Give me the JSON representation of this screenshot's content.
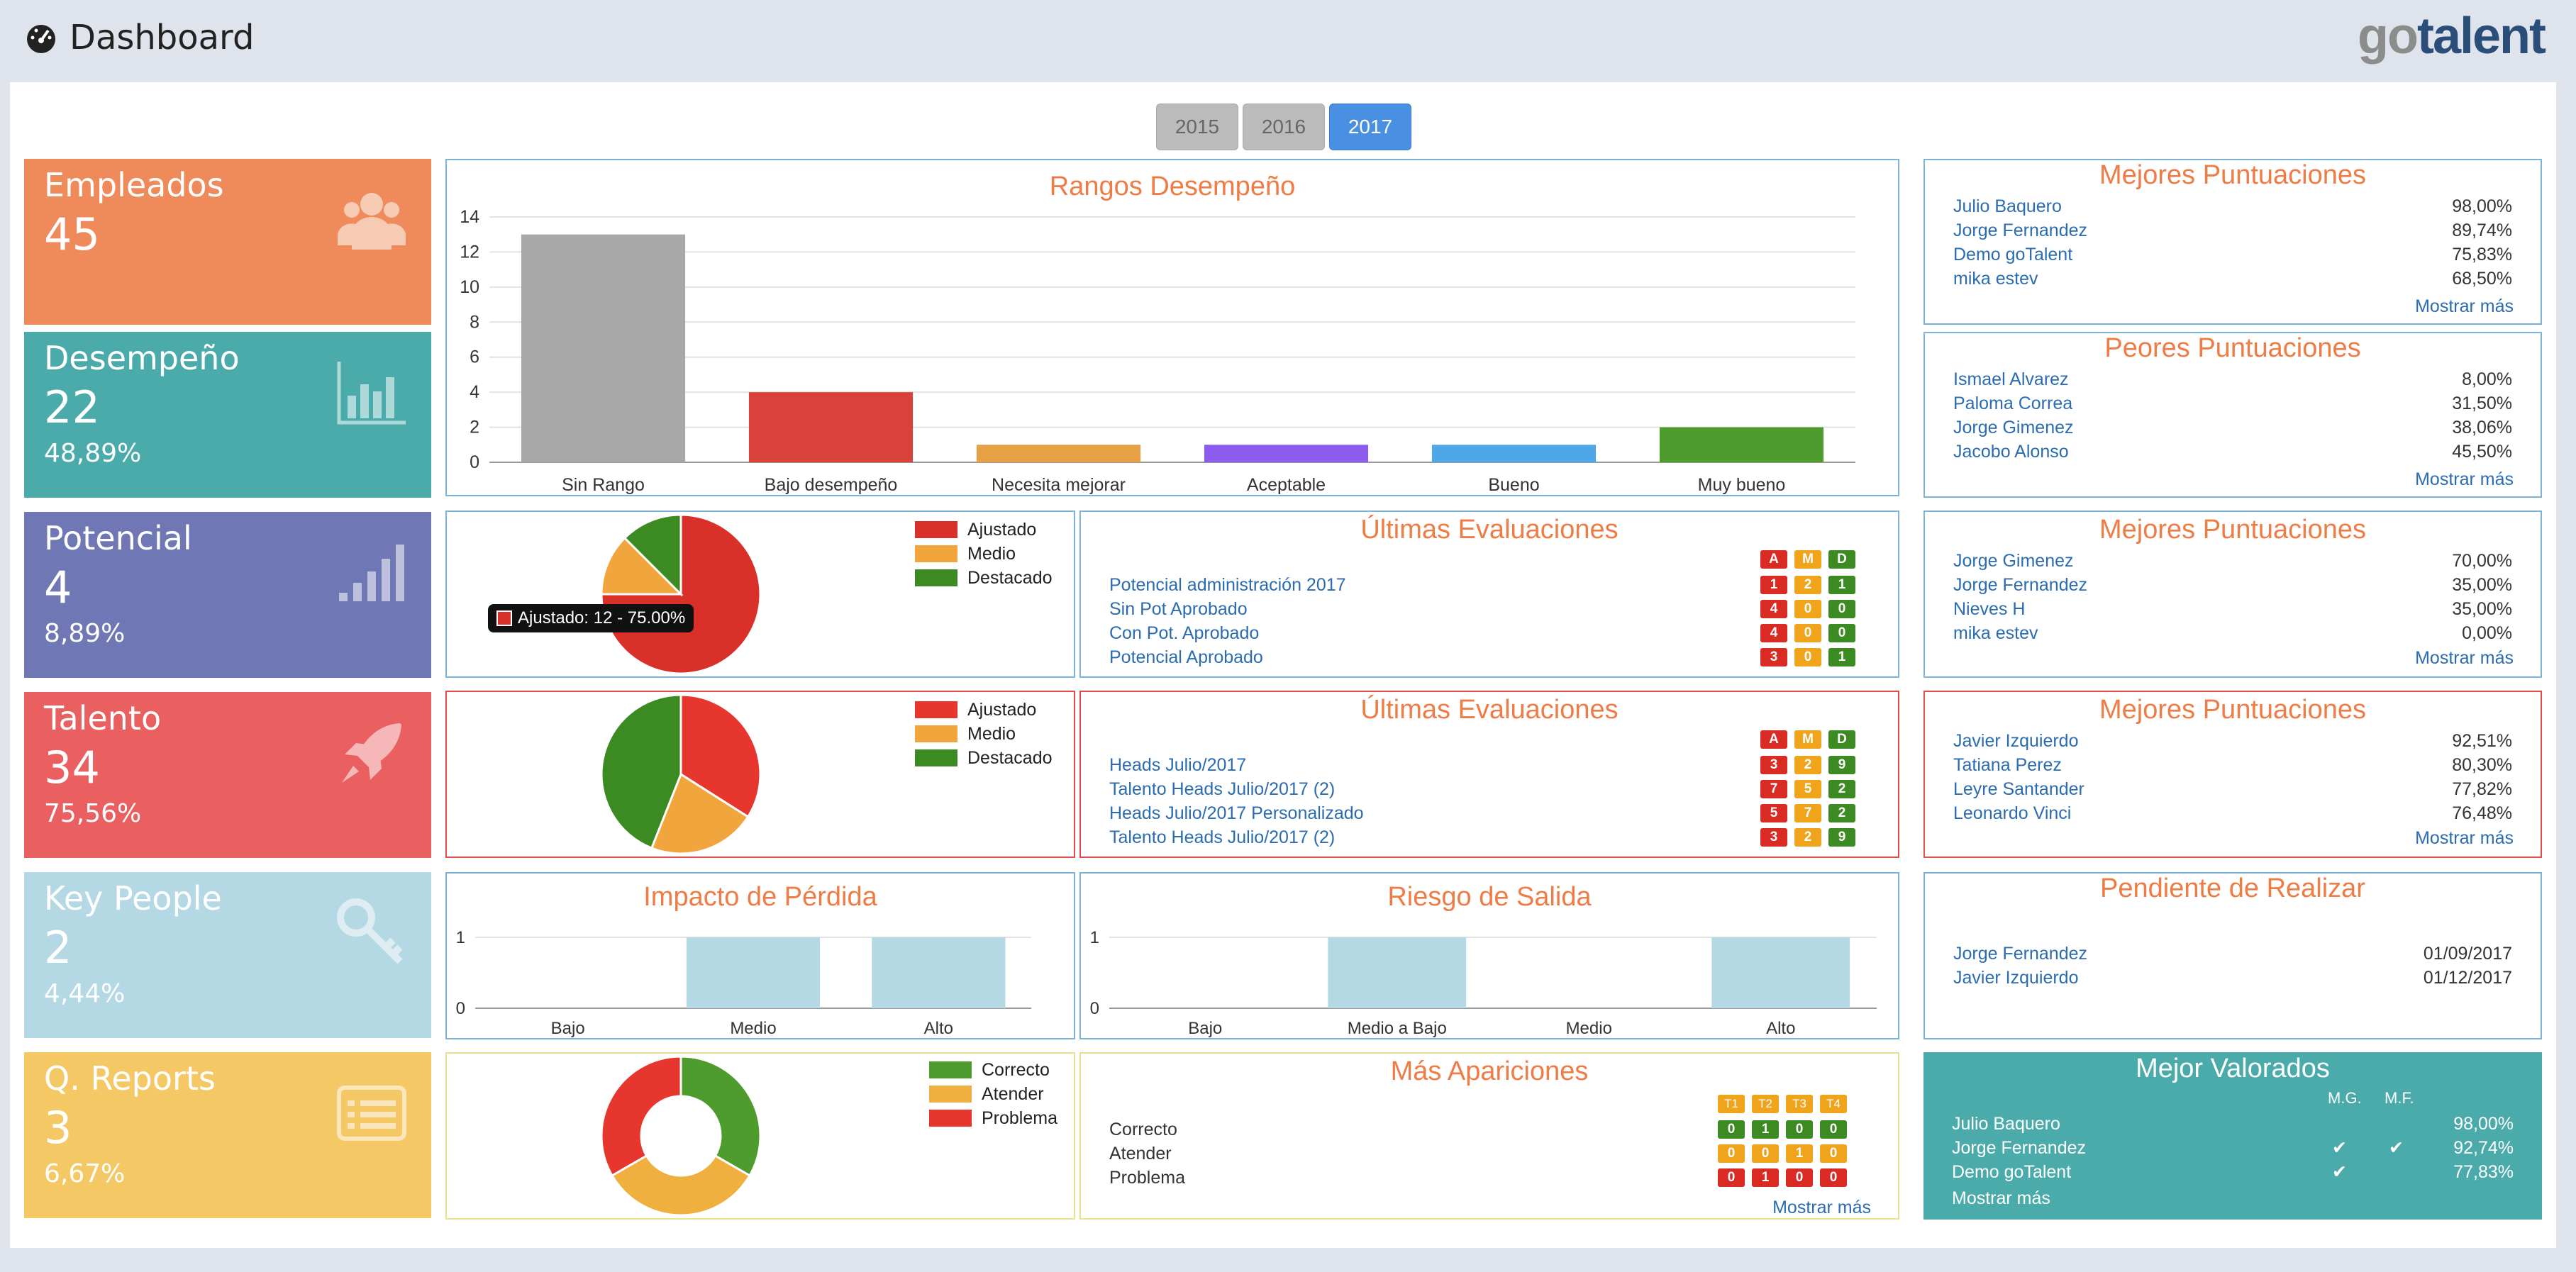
{
  "header": {
    "title": "Dashboard",
    "logo_go": "go",
    "logo_talent": "talent"
  },
  "years": [
    "2015",
    "2016",
    "2017"
  ],
  "active_year": "2017",
  "stats": [
    {
      "label": "Empleados",
      "value": "45",
      "pct": "",
      "color": "#ef8a5a",
      "icon": "users-icon"
    },
    {
      "label": "Desempeño",
      "value": "22",
      "pct": "48,89%",
      "color": "#4aabaa",
      "icon": "bar-chart-icon"
    },
    {
      "label": "Potencial",
      "value": "4",
      "pct": "8,89%",
      "color": "#6f77b5",
      "icon": "signal-icon"
    },
    {
      "label": "Talento",
      "value": "34",
      "pct": "75,56%",
      "color": "#ea5f60",
      "icon": "rocket-icon"
    },
    {
      "label": "Key People",
      "value": "2",
      "pct": "4,44%",
      "color": "#b4d8e4",
      "icon": "key-icon"
    },
    {
      "label": "Q. Reports",
      "value": "3",
      "pct": "6,67%",
      "color": "#f5c866",
      "icon": "list-icon"
    }
  ],
  "rangos": {
    "title": "Rangos Desempeño"
  },
  "legend_ajustado": {
    "a": "Ajustado",
    "m": "Medio",
    "d": "Destacado"
  },
  "tooltip": "Ajustado: 12 - 75.00%",
  "evaluaciones": [
    {
      "title": "Últimas Evaluaciones",
      "headers": [
        "A",
        "M",
        "D"
      ],
      "items": [
        {
          "name": "Potencial administración 2017",
          "a": "1",
          "m": "2",
          "d": "1"
        },
        {
          "name": "Sin Pot Aprobado",
          "a": "4",
          "m": "0",
          "d": "0"
        },
        {
          "name": "Con Pot. Aprobado",
          "a": "4",
          "m": "0",
          "d": "0"
        },
        {
          "name": "Potencial Aprobado",
          "a": "3",
          "m": "0",
          "d": "1"
        }
      ]
    },
    {
      "title": "Últimas Evaluaciones",
      "headers": [
        "A",
        "M",
        "D"
      ],
      "items": [
        {
          "name": "Heads Julio/2017",
          "a": "3",
          "m": "2",
          "d": "9"
        },
        {
          "name": "Talento Heads Julio/2017 (2)",
          "a": "7",
          "m": "5",
          "d": "2"
        },
        {
          "name": "Heads Julio/2017 Personalizado",
          "a": "5",
          "m": "7",
          "d": "2"
        },
        {
          "name": "Talento Heads Julio/2017 (2)",
          "a": "3",
          "m": "2",
          "d": "9"
        }
      ]
    }
  ],
  "impacto": {
    "title": "Impacto de Pérdida"
  },
  "riesgo": {
    "title": "Riesgo de Salida"
  },
  "qreports": {
    "legend": [
      "Correcto",
      "Atender",
      "Problema"
    ]
  },
  "apariciones": {
    "title": "Más Apariciones",
    "headers": [
      "T1",
      "T2",
      "T3",
      "T4"
    ],
    "rows": [
      {
        "name": "Correcto",
        "vals": [
          "0",
          "1",
          "0",
          "0"
        ]
      },
      {
        "name": "Atender",
        "vals": [
          "0",
          "0",
          "1",
          "0"
        ]
      },
      {
        "name": "Problema",
        "vals": [
          "0",
          "1",
          "0",
          "0"
        ]
      }
    ],
    "more": "Mostrar más"
  },
  "right_lists": [
    {
      "title": "Mejores Puntuaciones",
      "more": "Mostrar más",
      "rows": [
        {
          "n": "Julio Baquero",
          "v": "98,00%"
        },
        {
          "n": "Jorge Fernandez",
          "v": "89,74%"
        },
        {
          "n": "Demo goTalent",
          "v": "75,83%"
        },
        {
          "n": "mika estev",
          "v": "68,50%"
        }
      ]
    },
    {
      "title": "Peores Puntuaciones",
      "more": "Mostrar más",
      "rows": [
        {
          "n": "Ismael Alvarez",
          "v": "8,00%"
        },
        {
          "n": "Paloma Correa",
          "v": "31,50%"
        },
        {
          "n": "Jorge Gimenez",
          "v": "38,06%"
        },
        {
          "n": "Jacobo Alonso",
          "v": "45,50%"
        }
      ]
    },
    {
      "title": "Mejores Puntuaciones",
      "more": "Mostrar más",
      "rows": [
        {
          "n": "Jorge Gimenez",
          "v": "70,00%"
        },
        {
          "n": "Jorge Fernandez",
          "v": "35,00%"
        },
        {
          "n": "Nieves H",
          "v": "35,00%"
        },
        {
          "n": "mika estev",
          "v": "0,00%"
        }
      ]
    },
    {
      "title": "Mejores Puntuaciones",
      "more": "Mostrar más",
      "rows": [
        {
          "n": "Javier Izquierdo",
          "v": "92,51%"
        },
        {
          "n": "Tatiana Perez",
          "v": "80,30%"
        },
        {
          "n": "Leyre Santander",
          "v": "77,82%"
        },
        {
          "n": "Leonardo Vinci",
          "v": "76,48%"
        }
      ]
    }
  ],
  "pendiente": {
    "title": "Pendiente de Realizar",
    "rows": [
      {
        "n": "Jorge Fernandez",
        "v": "01/09/2017"
      },
      {
        "n": "Javier Izquierdo",
        "v": "01/12/2017"
      }
    ]
  },
  "mejor_valorados": {
    "title": "Mejor Valorados",
    "col1": "M.G.",
    "col2": "M.F.",
    "more": "Mostrar más",
    "rows": [
      {
        "n": "Julio Baquero",
        "mg": "",
        "mf": "",
        "v": "98,00%"
      },
      {
        "n": "Jorge Fernandez",
        "mg": "✔",
        "mf": "✔",
        "v": "92,74%"
      },
      {
        "n": "Demo goTalent",
        "mg": "✔",
        "mf": "",
        "v": "77,83%"
      }
    ]
  },
  "chart_data": [
    {
      "type": "bar",
      "title": "Rangos Desempeño",
      "categories": [
        "Sin Rango",
        "Bajo desempeño",
        "Necesita mejorar",
        "Aceptable",
        "Bueno",
        "Muy bueno"
      ],
      "values": [
        13,
        4,
        1,
        1,
        1,
        2
      ],
      "colors": [
        "#a8a8a8",
        "#d9423a",
        "#e8a044",
        "#8c5cf0",
        "#4ea8e8",
        "#4e9c2e"
      ],
      "ylim": [
        0,
        14
      ],
      "yticks": [
        "0",
        "2",
        "4",
        "6",
        "8",
        "10",
        "12",
        "14"
      ],
      "grid": true
    },
    {
      "type": "pie",
      "labels": [
        "Ajustado",
        "Medio",
        "Destacado"
      ],
      "values": [
        12,
        2,
        2
      ],
      "colors": [
        "#d9302a",
        "#f0a63c",
        "#3b8a22"
      ],
      "legend": "top-right"
    },
    {
      "type": "pie",
      "labels": [
        "Ajustado",
        "Medio",
        "Destacado"
      ],
      "values": [
        34,
        22,
        44
      ],
      "colors": [
        "#e6362e",
        "#f0a63c",
        "#3b8a22"
      ],
      "legend": "top-right"
    },
    {
      "type": "bar",
      "title": "Impacto de Pérdida",
      "categories": [
        "Bajo",
        "Medio",
        "Alto"
      ],
      "values": [
        0,
        1,
        1
      ],
      "ylim": [
        0,
        1
      ],
      "yticks": [
        "0",
        "1"
      ],
      "color": "#b4d8e4"
    },
    {
      "type": "bar",
      "title": "Riesgo de Salida",
      "categories": [
        "Bajo",
        "Medio a Bajo",
        "Medio",
        "Alto"
      ],
      "values": [
        0,
        1,
        0,
        1
      ],
      "ylim": [
        0,
        1
      ],
      "yticks": [
        "0",
        "1"
      ],
      "color": "#b4d8e4"
    },
    {
      "type": "pie",
      "donut": true,
      "labels": [
        "Correcto",
        "Atender",
        "Problema"
      ],
      "values": [
        1,
        1,
        1
      ],
      "colors": [
        "#4e9c2e",
        "#f0b040",
        "#e6362e"
      ],
      "legend": "top-right"
    }
  ]
}
